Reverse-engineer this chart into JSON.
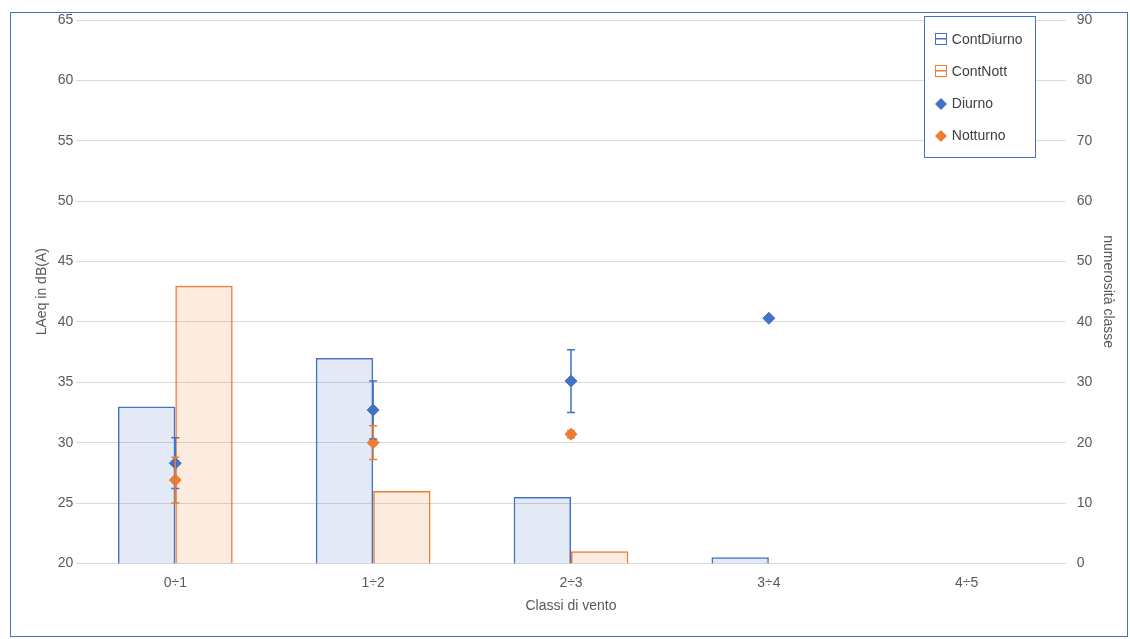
{
  "chart_data": {
    "type": "bar",
    "xlabel": "Classi di vento",
    "ylabel": "LAeq in dB(A)",
    "y2label": "numerosità classe",
    "categories": [
      "0÷1",
      "1÷2",
      "2÷3",
      "3÷4",
      "4÷5"
    ],
    "series": [
      {
        "name": "ContDiurno",
        "axis": "y2",
        "color": "#4472c4",
        "values": [
          26,
          34,
          11,
          1,
          0
        ]
      },
      {
        "name": "ContNott",
        "axis": "y2",
        "color": "#ed7d31",
        "values": [
          46,
          12,
          2,
          0,
          0
        ]
      },
      {
        "name": "Diurno",
        "type": "scatter",
        "color": "#4472c4",
        "x": [
          "0÷1",
          "1÷2",
          "2÷3",
          "3÷4",
          "4÷5"
        ],
        "values": [
          28.3,
          32.7,
          35.1,
          40.3,
          null
        ],
        "errors": [
          2.1,
          2.4,
          2.6,
          null,
          null
        ]
      },
      {
        "name": "Notturno",
        "type": "scatter",
        "color": "#ed7d31",
        "x": [
          "0÷1",
          "1÷2",
          "2÷3",
          "3÷4",
          "4÷5"
        ],
        "values": [
          26.9,
          30.0,
          30.7,
          null,
          null
        ],
        "errors": [
          1.9,
          1.4,
          0.3,
          null,
          null
        ]
      }
    ],
    "ylim": [
      20,
      65
    ],
    "yticks": [
      20,
      25,
      30,
      35,
      40,
      45,
      50,
      55,
      60,
      65
    ],
    "y2lim": [
      0,
      90
    ],
    "y2ticks": [
      0,
      10,
      20,
      30,
      40,
      50,
      60,
      70,
      80,
      90
    ],
    "grid": "y",
    "legend": "top right",
    "marker": "diamond"
  }
}
